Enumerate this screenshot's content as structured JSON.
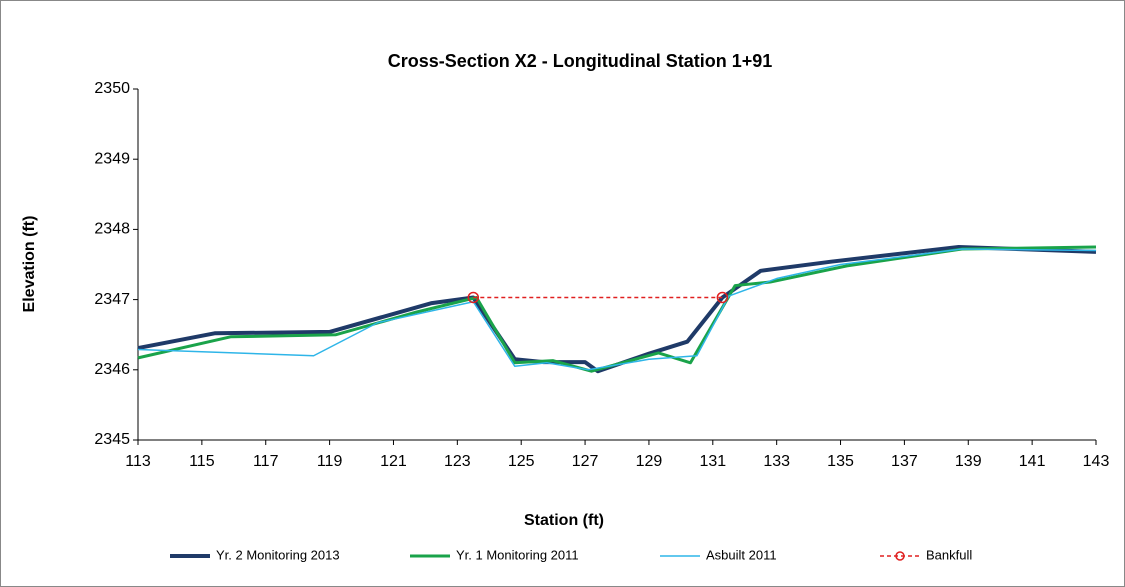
{
  "chart_data": {
    "type": "line",
    "title": "Cross-Section X2 - Longitudinal Station 1+91",
    "x_label": "Station (ft)",
    "y_label": "Elevation (ft)",
    "xlim": [
      113,
      143
    ],
    "xticks": [
      113,
      115,
      117,
      119,
      121,
      123,
      125,
      127,
      129,
      131,
      133,
      135,
      137,
      139,
      141,
      143
    ],
    "ylim": [
      2345,
      2350
    ],
    "yticks": [
      2345,
      2346,
      2347,
      2348,
      2349,
      2350
    ],
    "grid": false,
    "legend": "bottom",
    "series": [
      {
        "name": "Yr. 2 Monitoring 2013",
        "color": "#1f3a68",
        "width": 4,
        "dash": false,
        "marker": false,
        "x": [
          113,
          115.4,
          119.0,
          122.2,
          123.5,
          124.8,
          125.7,
          127.0,
          127.4,
          129.0,
          130.2,
          131.3,
          132.5,
          134.7,
          138.7,
          143
        ],
        "values": [
          2346.31,
          2346.52,
          2346.54,
          2346.95,
          2347.03,
          2346.15,
          2346.11,
          2346.11,
          2345.98,
          2346.23,
          2346.4,
          2347.03,
          2347.41,
          2347.54,
          2347.75,
          2347.68
        ]
      },
      {
        "name": "Yr. 1 Monitoring 2011",
        "color": "#1aa34a",
        "width": 3,
        "dash": false,
        "marker": false,
        "x": [
          113,
          115.9,
          119.2,
          121.7,
          123.6,
          124.8,
          126.0,
          127.2,
          129.3,
          130.3,
          131.7,
          132.8,
          135.2,
          138.8,
          143
        ],
        "values": [
          2346.17,
          2346.47,
          2346.5,
          2346.82,
          2347.03,
          2346.1,
          2346.13,
          2345.98,
          2346.24,
          2346.1,
          2347.2,
          2347.25,
          2347.48,
          2347.72,
          2347.75
        ]
      },
      {
        "name": "Asbuilt 2011",
        "color": "#2eb5e8",
        "width": 1.5,
        "dash": false,
        "marker": false,
        "x": [
          113,
          118.5,
          120.5,
          123.5,
          124.8,
          125.8,
          127.1,
          129.0,
          130.5,
          131.5,
          133.0,
          135.0,
          138.8,
          143
        ],
        "values": [
          2346.29,
          2346.2,
          2346.67,
          2346.97,
          2346.05,
          2346.1,
          2346.0,
          2346.15,
          2346.2,
          2347.05,
          2347.3,
          2347.5,
          2347.72,
          2347.7
        ]
      },
      {
        "name": "Bankfull",
        "color": "#e02020",
        "width": 1.5,
        "dash": true,
        "marker": true,
        "x": [
          123.5,
          131.3
        ],
        "values": [
          2347.03,
          2347.03
        ]
      }
    ]
  }
}
